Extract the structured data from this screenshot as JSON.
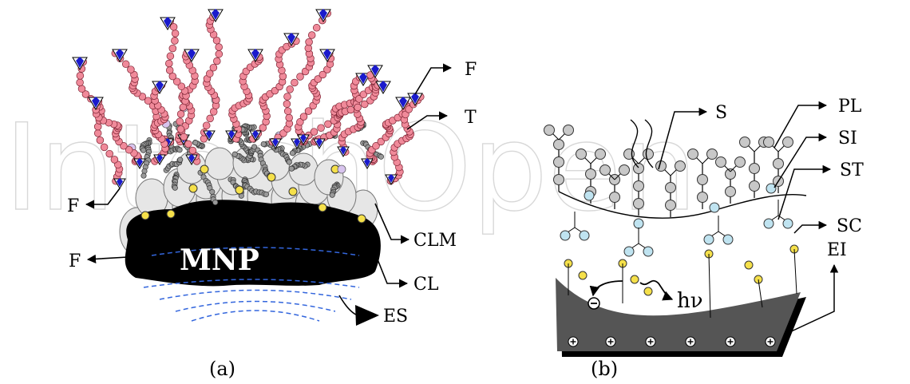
{
  "watermark": "IntechOpen",
  "panel_a": {
    "caption": "(a)",
    "core_label": "MNP",
    "labels": {
      "f_top": "F",
      "t": "T",
      "f_left_1": "F",
      "f_left_2": "F",
      "clm": "CLM",
      "cl": "CL",
      "es": "ES"
    }
  },
  "panel_b": {
    "caption": "(b)",
    "photon_label": "hν",
    "labels": {
      "s": "S",
      "pl": "PL",
      "si": "SI",
      "st": "ST",
      "sc": "SC",
      "ei": "EI"
    }
  },
  "colors": {
    "core": "#000000",
    "shell": "#e6e6e6",
    "chain_bead": "#f08a9a",
    "fluorophore": "#1a1acc",
    "crosslink_bead": "#999999",
    "yellow_node": "#f5e04a",
    "blue_node": "#bfe3f0",
    "electrode": "#555555",
    "field_lines": "#3366dd"
  }
}
